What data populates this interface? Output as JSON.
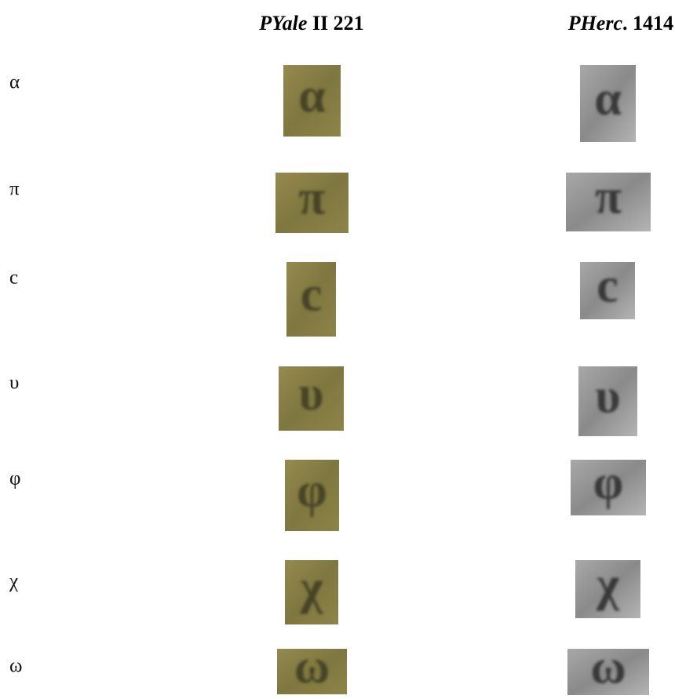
{
  "header": {
    "columns": [
      {
        "italic": "PYale",
        "rest": " II 221"
      },
      {
        "italic": "PHerc",
        "rest": ". 1414"
      }
    ]
  },
  "rows": [
    {
      "letter": "α"
    },
    {
      "letter": "π"
    },
    {
      "letter": "c"
    },
    {
      "letter": "υ"
    },
    {
      "letter": "φ"
    },
    {
      "letter": "χ"
    },
    {
      "letter": "ω"
    }
  ]
}
